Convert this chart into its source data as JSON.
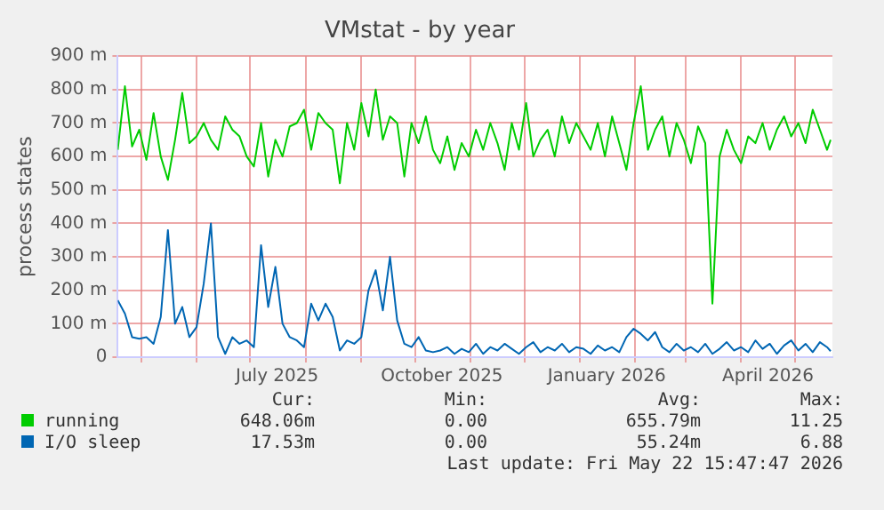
{
  "chart_data": {
    "type": "line",
    "title": "VMstat - by year",
    "ylabel": "process states",
    "x": [
      "2025-04-18",
      "2025-04-22",
      "2025-04-26",
      "2025-04-30",
      "2025-05-04",
      "2025-05-08",
      "2025-05-12",
      "2025-05-16",
      "2025-05-20",
      "2025-05-24",
      "2025-05-28",
      "2025-06-01",
      "2025-06-05",
      "2025-06-09",
      "2025-06-13",
      "2025-06-17",
      "2025-06-21",
      "2025-06-25",
      "2025-06-29",
      "2025-07-03",
      "2025-07-07",
      "2025-07-11",
      "2025-07-15",
      "2025-07-19",
      "2025-07-23",
      "2025-07-27",
      "2025-07-31",
      "2025-08-04",
      "2025-08-08",
      "2025-08-12",
      "2025-08-16",
      "2025-08-20",
      "2025-08-24",
      "2025-08-28",
      "2025-09-01",
      "2025-09-05",
      "2025-09-09",
      "2025-09-13",
      "2025-09-17",
      "2025-09-21",
      "2025-09-25",
      "2025-09-29",
      "2025-10-03",
      "2025-10-07",
      "2025-10-11",
      "2025-10-15",
      "2025-10-19",
      "2025-10-23",
      "2025-10-27",
      "2025-10-31",
      "2025-11-04",
      "2025-11-08",
      "2025-11-12",
      "2025-11-16",
      "2025-11-20",
      "2025-11-24",
      "2025-11-28",
      "2025-12-02",
      "2025-12-06",
      "2025-12-10",
      "2025-12-14",
      "2025-12-18",
      "2025-12-22",
      "2025-12-26",
      "2025-12-30",
      "2026-01-03",
      "2026-01-07",
      "2026-01-11",
      "2026-01-15",
      "2026-01-19",
      "2026-01-23",
      "2026-01-27",
      "2026-01-31",
      "2026-02-04",
      "2026-02-08",
      "2026-02-12",
      "2026-02-16",
      "2026-02-20",
      "2026-02-24",
      "2026-02-28",
      "2026-03-04",
      "2026-03-08",
      "2026-03-12",
      "2026-03-16",
      "2026-03-20",
      "2026-03-24",
      "2026-03-28",
      "2026-04-01",
      "2026-04-05",
      "2026-04-09",
      "2026-04-13",
      "2026-04-17",
      "2026-04-21",
      "2026-04-25",
      "2026-04-29",
      "2026-05-03",
      "2026-05-07",
      "2026-05-11",
      "2026-05-15",
      "2026-05-19",
      "2026-05-21"
    ],
    "series": [
      {
        "name": "running",
        "color": "#00cc00",
        "values": [
          620,
          810,
          630,
          680,
          590,
          730,
          600,
          530,
          650,
          790,
          640,
          660,
          700,
          650,
          620,
          720,
          680,
          660,
          600,
          570,
          700,
          540,
          650,
          600,
          690,
          700,
          740,
          620,
          730,
          700,
          680,
          520,
          700,
          620,
          760,
          660,
          800,
          650,
          720,
          700,
          540,
          700,
          640,
          720,
          620,
          580,
          660,
          560,
          640,
          600,
          680,
          620,
          700,
          640,
          560,
          700,
          620,
          760,
          600,
          650,
          680,
          600,
          720,
          640,
          700,
          660,
          620,
          700,
          600,
          720,
          640,
          560,
          700,
          810,
          620,
          680,
          720,
          600,
          700,
          650,
          580,
          690,
          640,
          160,
          600,
          680,
          620,
          580,
          660,
          640,
          700,
          620,
          680,
          720,
          660,
          700,
          640,
          740,
          680,
          620,
          650
        ]
      },
      {
        "name": "I/O sleep",
        "color": "#0066b3",
        "values": [
          170,
          130,
          60,
          55,
          60,
          40,
          120,
          380,
          100,
          150,
          60,
          90,
          220,
          400,
          60,
          10,
          60,
          40,
          50,
          30,
          335,
          150,
          270,
          100,
          60,
          50,
          30,
          160,
          110,
          160,
          120,
          20,
          50,
          40,
          60,
          200,
          260,
          140,
          300,
          110,
          40,
          30,
          60,
          20,
          15,
          20,
          30,
          10,
          25,
          15,
          40,
          10,
          30,
          20,
          40,
          25,
          10,
          30,
          45,
          15,
          30,
          20,
          40,
          15,
          30,
          25,
          10,
          35,
          20,
          30,
          15,
          60,
          85,
          70,
          50,
          75,
          30,
          15,
          40,
          20,
          30,
          15,
          40,
          10,
          25,
          45,
          20,
          30,
          15,
          50,
          25,
          40,
          10,
          35,
          50,
          20,
          40,
          15,
          45,
          30,
          18
        ]
      }
    ],
    "xlim": [
      "2025-04-18",
      "2026-05-22"
    ],
    "xticks": [
      {
        "value": "2025-05-01",
        "label": null
      },
      {
        "value": "2025-06-01",
        "label": null
      },
      {
        "value": "2025-07-01",
        "label": null
      },
      {
        "value": "2025-07-16",
        "label": "July 2025"
      },
      {
        "value": "2025-08-01",
        "label": null
      },
      {
        "value": "2025-09-01",
        "label": null
      },
      {
        "value": "2025-10-01",
        "label": null
      },
      {
        "value": "2025-10-16",
        "label": "October 2025"
      },
      {
        "value": "2025-11-01",
        "label": null
      },
      {
        "value": "2025-12-01",
        "label": null
      },
      {
        "value": "2026-01-01",
        "label": null
      },
      {
        "value": "2026-01-16",
        "label": "January 2026"
      },
      {
        "value": "2026-02-01",
        "label": null
      },
      {
        "value": "2026-03-01",
        "label": null
      },
      {
        "value": "2026-04-01",
        "label": null
      },
      {
        "value": "2026-04-16",
        "label": "April 2026"
      },
      {
        "value": "2026-05-01",
        "label": null
      }
    ],
    "ylim": [
      0,
      900
    ],
    "yticks": [
      0,
      {
        "value": 100,
        "label": "100 m"
      },
      {
        "value": 200,
        "label": "200 m"
      },
      {
        "value": 300,
        "label": "300 m"
      },
      {
        "value": 400,
        "label": "400 m"
      },
      {
        "value": 500,
        "label": "500 m"
      },
      {
        "value": 600,
        "label": "600 m"
      },
      {
        "value": 700,
        "label": "700 m"
      },
      {
        "value": 800,
        "label": "800 m"
      },
      {
        "value": 900,
        "label": "900 m"
      }
    ],
    "grid": true,
    "legend": "bottom",
    "marker": "none",
    "line_style": "solid",
    "annotations": [
      "Cur:",
      "Min:",
      "Avg:",
      "Max:",
      "648.06m",
      "0.00",
      "655.79m",
      "11.25",
      "17.53m",
      "0.00",
      "55.24m",
      "6.88",
      "Last update: Fri May 22 15:47:47 2026"
    ]
  }
}
